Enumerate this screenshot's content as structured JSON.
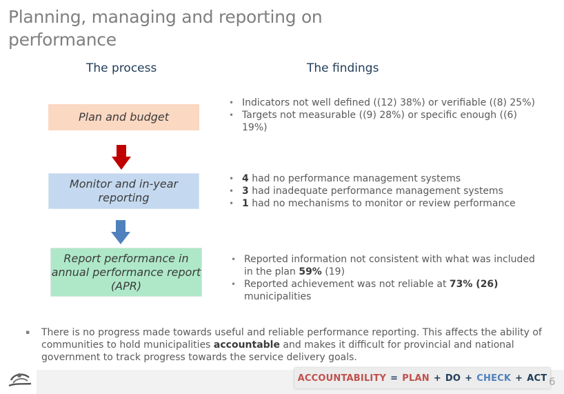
{
  "title": "Planning, managing and reporting on performance",
  "process_header": "The process",
  "findings_header": "The findings",
  "process_steps": [
    "Plan and budget",
    "Monitor and in-year reporting",
    "Report performance in annual performance report (APR)"
  ],
  "findings_group1": [
    "Indicators not well defined ((12) 38%) or verifiable ((8) 25%)",
    "Targets not measurable ((9) 28%) or specific enough ((6) 19%)"
  ],
  "findings_group2": [
    {
      "num": "4",
      "text": "  had no performance management systems"
    },
    {
      "num": "3",
      "text": " had inadequate performance management systems"
    },
    {
      "num": "1",
      "text": " had no mechanisms to monitor or review performance"
    }
  ],
  "findings_group3": {
    "item1_text": "Reported information not consistent with what was included in the plan ",
    "item1_bold": "59%",
    "item1_tail": " (19)",
    "item2_text": "Reported achievement was not reliable at ",
    "item2_bold": "73% (26)",
    "item2_tail": " municipalities"
  },
  "bottom_note": {
    "part1": "There is no progress made towards useful and reliable performance reporting. This affects the ability of communities to hold municipalities ",
    "bold": "accountable",
    "part2": " and makes it difficult for provincial and national government to track progress towards the service delivery goals."
  },
  "accountability_banner": {
    "accountability": "ACCOUNTABILITY",
    "equals": "=",
    "plan": "PLAN",
    "plus1": "+",
    "do": "DO",
    "plus2": "+",
    "check": "CHECK",
    "plus3": "+",
    "act": "ACT"
  },
  "page_number": "6",
  "colors": {
    "accountability": "#c0504d",
    "plan": "#c0504d",
    "do": "#1f3b57",
    "check": "#4f81bd",
    "act": "#1f3b57",
    "arrow_red": "#c00000",
    "arrow_blue": "#4f81bd"
  },
  "icons": [
    "auditor-general-logo",
    "down-arrow-red",
    "down-arrow-blue"
  ]
}
